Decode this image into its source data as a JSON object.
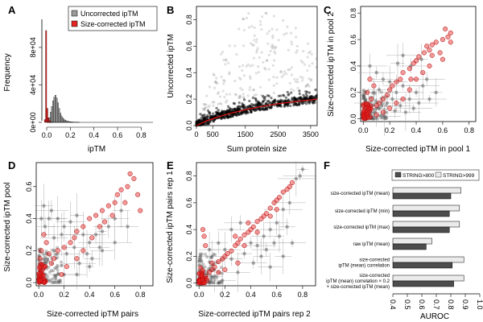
{
  "colors": {
    "uncorrected": "#9a9a9a",
    "corrected": "#e32222",
    "scatter_grey": "#555555",
    "bar_dark": "#4d4d4d",
    "bar_light": "#ebebeb",
    "fit_line": "#dd1111"
  },
  "chart_data": [
    {
      "panel": "A",
      "type": "histogram",
      "xlabel": "ipTM",
      "ylabel": "Frequency",
      "xticks": [
        "0.0",
        "0.2",
        "0.4",
        "0.6",
        "0.8"
      ],
      "yticks": [
        "0e+00",
        "4e+04",
        "8e+04"
      ],
      "legend": [
        "Uncorrected ipTM",
        "Size-corrected ipTM"
      ],
      "bin_width": 0.01,
      "xlim": [
        0,
        0.9
      ],
      "ylim": [
        0,
        110000
      ],
      "series": [
        {
          "name": "Size-corrected ipTM",
          "start": -0.02,
          "values": [
            3000,
            98000,
            15000,
            5000,
            2000,
            800,
            300
          ]
        },
        {
          "name": "Uncorrected ipTM",
          "start": 0.0,
          "values": [
            400,
            1500,
            5000,
            11000,
            17000,
            23000,
            27000,
            29000,
            26000,
            21000,
            15000,
            10000,
            7000,
            5000,
            3500,
            2500,
            1800,
            1300,
            1000,
            800,
            600,
            500,
            400,
            300,
            250,
            200,
            150,
            100
          ]
        }
      ]
    },
    {
      "panel": "B",
      "type": "scatter",
      "xlabel": "Sum protein size",
      "ylabel": "Uncorrected ipTM",
      "xticks": [
        "0",
        "500",
        "1500",
        "2500",
        "3500"
      ],
      "yticks": [
        "0.0",
        "0.2",
        "0.4",
        "0.6",
        "0.8"
      ],
      "xlim": [
        0,
        3700
      ],
      "ylim": [
        0,
        0.9
      ],
      "fit_points": [
        [
          0,
          0
        ],
        [
          300,
          0.035
        ],
        [
          600,
          0.06
        ],
        [
          1000,
          0.09
        ],
        [
          1500,
          0.12
        ],
        [
          2000,
          0.145
        ],
        [
          2500,
          0.165
        ],
        [
          3000,
          0.18
        ],
        [
          3700,
          0.2
        ]
      ],
      "cloud_curve": [
        [
          0,
          0
        ],
        [
          500,
          0.4
        ],
        [
          1000,
          0.7
        ],
        [
          1600,
          0.85
        ],
        [
          2200,
          0.88
        ],
        [
          3000,
          0.75
        ],
        [
          3700,
          0.55
        ]
      ]
    },
    {
      "panel": "C",
      "type": "scatter",
      "xlabel": "Size-corrected ipTM in pool 1",
      "ylabel": "Size-corrected ipTM in pool 2",
      "xticks": [
        "0.0",
        "0.2",
        "0.4",
        "0.6",
        "0.8"
      ],
      "yticks": [
        "0.0",
        "0.2",
        "0.4",
        "0.6",
        "0.8"
      ],
      "xlim": [
        -0.02,
        0.85
      ],
      "ylim": [
        -0.02,
        0.85
      ],
      "red_points": [
        [
          0.62,
          0.68
        ],
        [
          0.66,
          0.65
        ],
        [
          0.64,
          0.62
        ],
        [
          0.6,
          0.6
        ],
        [
          0.55,
          0.58
        ],
        [
          0.52,
          0.56
        ],
        [
          0.5,
          0.52
        ],
        [
          0.46,
          0.5
        ],
        [
          0.42,
          0.47
        ],
        [
          0.4,
          0.44
        ],
        [
          0.38,
          0.42
        ],
        [
          0.35,
          0.38
        ],
        [
          0.3,
          0.35
        ],
        [
          0.45,
          0.35
        ],
        [
          0.5,
          0.4
        ],
        [
          0.28,
          0.3
        ],
        [
          0.25,
          0.28
        ],
        [
          0.22,
          0.25
        ],
        [
          0.2,
          0.22
        ],
        [
          0.35,
          0.22
        ],
        [
          0.18,
          0.18
        ],
        [
          0.15,
          0.15
        ],
        [
          0.12,
          0.12
        ],
        [
          0.1,
          0.1
        ],
        [
          0.3,
          0.15
        ],
        [
          0.25,
          0.12
        ],
        [
          0.08,
          0.25
        ],
        [
          0.05,
          0.3
        ],
        [
          0.03,
          0.2
        ],
        [
          0.06,
          0.15
        ],
        [
          0.02,
          0.05
        ],
        [
          0.04,
          0.08
        ],
        [
          0.01,
          0.02
        ],
        [
          0.03,
          0.03
        ],
        [
          0.05,
          0.02
        ],
        [
          0.66,
          0.58
        ],
        [
          0.58,
          0.5
        ],
        [
          0.6,
          0.45
        ],
        [
          0.48,
          0.55
        ],
        [
          0.52,
          0.48
        ],
        [
          0.4,
          0.3
        ],
        [
          0.36,
          0.3
        ],
        [
          0.2,
          0.08
        ],
        [
          0.15,
          0.05
        ],
        [
          0.1,
          0.03
        ]
      ],
      "grey_points": [
        [
          0.05,
          0.4
        ],
        [
          0.1,
          0.35
        ],
        [
          0.15,
          0.3
        ],
        [
          0.2,
          0.28
        ],
        [
          0.25,
          0.2
        ],
        [
          0.3,
          0.25
        ],
        [
          0.35,
          0.15
        ],
        [
          0.4,
          0.2
        ],
        [
          0.45,
          0.25
        ],
        [
          0.08,
          0.2
        ],
        [
          0.12,
          0.22
        ],
        [
          0.18,
          0.12
        ],
        [
          0.22,
          0.15
        ],
        [
          0.28,
          0.1
        ],
        [
          0.32,
          0.05
        ],
        [
          0.38,
          0.08
        ],
        [
          0.42,
          0.12
        ],
        [
          0.5,
          0.15
        ],
        [
          0.55,
          0.2
        ],
        [
          0.06,
          0.05
        ],
        [
          0.1,
          0.08
        ],
        [
          0.14,
          0.1
        ],
        [
          0.04,
          0.12
        ],
        [
          0.16,
          0.02
        ],
        [
          0.24,
          0.06
        ],
        [
          0.48,
          0.3
        ],
        [
          0.36,
          0.4
        ],
        [
          0.26,
          0.42
        ],
        [
          0.44,
          0.45
        ],
        [
          0.3,
          0.48
        ]
      ]
    },
    {
      "panel": "D",
      "type": "scatter",
      "xlabel": "Size-corrected ipTM pairs",
      "ylabel": "Size-corrected ipTM pool",
      "xticks": [
        "0.0",
        "0.2",
        "0.4",
        "0.6",
        "0.8"
      ],
      "yticks": [
        "0.0",
        "0.2",
        "0.4",
        "0.6"
      ],
      "xlim": [
        -0.02,
        0.9
      ],
      "ylim": [
        -0.02,
        0.75
      ],
      "red_points": [
        [
          0.72,
          0.68
        ],
        [
          0.75,
          0.65
        ],
        [
          0.7,
          0.6
        ],
        [
          0.65,
          0.58
        ],
        [
          0.62,
          0.55
        ],
        [
          0.6,
          0.5
        ],
        [
          0.55,
          0.48
        ],
        [
          0.5,
          0.45
        ],
        [
          0.45,
          0.42
        ],
        [
          0.4,
          0.4
        ],
        [
          0.35,
          0.35
        ],
        [
          0.3,
          0.32
        ],
        [
          0.28,
          0.28
        ],
        [
          0.25,
          0.25
        ],
        [
          0.2,
          0.22
        ],
        [
          0.15,
          0.2
        ],
        [
          0.12,
          0.15
        ],
        [
          0.1,
          0.12
        ],
        [
          0.05,
          0.1
        ],
        [
          0.03,
          0.05
        ],
        [
          0.02,
          0.02
        ],
        [
          0.04,
          0.3
        ],
        [
          0.06,
          0.25
        ],
        [
          0.08,
          0.18
        ],
        [
          0.58,
          0.42
        ],
        [
          0.52,
          0.38
        ],
        [
          0.48,
          0.35
        ],
        [
          0.68,
          0.5
        ],
        [
          0.78,
          0.55
        ],
        [
          0.8,
          0.45
        ],
        [
          0.3,
          0.15
        ],
        [
          0.35,
          0.2
        ],
        [
          0.42,
          0.28
        ],
        [
          0.22,
          0.1
        ],
        [
          0.18,
          0.05
        ],
        [
          0.01,
          0.15
        ],
        [
          0.02,
          0.2
        ],
        [
          0.03,
          0.08
        ]
      ],
      "grey_points": [
        [
          0.1,
          0.45
        ],
        [
          0.15,
          0.4
        ],
        [
          0.2,
          0.35
        ],
        [
          0.25,
          0.38
        ],
        [
          0.3,
          0.42
        ],
        [
          0.35,
          0.3
        ],
        [
          0.4,
          0.25
        ],
        [
          0.45,
          0.3
        ],
        [
          0.5,
          0.32
        ],
        [
          0.55,
          0.35
        ],
        [
          0.6,
          0.4
        ],
        [
          0.65,
          0.45
        ],
        [
          0.3,
          0.05
        ],
        [
          0.4,
          0.1
        ],
        [
          0.2,
          0.05
        ],
        [
          0.5,
          0.2
        ],
        [
          0.6,
          0.25
        ],
        [
          0.7,
          0.35
        ],
        [
          0.05,
          0.35
        ],
        [
          0.08,
          0.4
        ],
        [
          0.12,
          0.28
        ],
        [
          0.18,
          0.3
        ],
        [
          0.22,
          0.18
        ],
        [
          0.28,
          0.22
        ],
        [
          0.32,
          0.12
        ],
        [
          0.38,
          0.18
        ],
        [
          0.42,
          0.15
        ],
        [
          0.48,
          0.22
        ],
        [
          0.02,
          0.4
        ],
        [
          0.04,
          0.48
        ]
      ]
    },
    {
      "panel": "E",
      "type": "scatter",
      "xlabel": "Size-corrected ipTM pairs rep 2",
      "ylabel": "Size-corrected ipTM pairs rep 1",
      "xticks": [
        "0.0",
        "0.2",
        "0.4",
        "0.6",
        "0.8"
      ],
      "yticks": [
        "0.0",
        "0.2",
        "0.4",
        "0.6",
        "0.8"
      ],
      "xlim": [
        -0.02,
        0.9
      ],
      "ylim": [
        -0.02,
        0.9
      ],
      "red_points": [
        [
          0.72,
          0.75
        ],
        [
          0.7,
          0.72
        ],
        [
          0.68,
          0.7
        ],
        [
          0.65,
          0.68
        ],
        [
          0.62,
          0.64
        ],
        [
          0.6,
          0.62
        ],
        [
          0.58,
          0.6
        ],
        [
          0.55,
          0.56
        ],
        [
          0.52,
          0.52
        ],
        [
          0.5,
          0.5
        ],
        [
          0.48,
          0.48
        ],
        [
          0.45,
          0.46
        ],
        [
          0.42,
          0.42
        ],
        [
          0.4,
          0.4
        ],
        [
          0.38,
          0.38
        ],
        [
          0.35,
          0.36
        ],
        [
          0.32,
          0.33
        ],
        [
          0.3,
          0.3
        ],
        [
          0.28,
          0.28
        ],
        [
          0.25,
          0.24
        ],
        [
          0.22,
          0.22
        ],
        [
          0.2,
          0.2
        ],
        [
          0.18,
          0.18
        ],
        [
          0.15,
          0.16
        ],
        [
          0.12,
          0.12
        ],
        [
          0.1,
          0.1
        ],
        [
          0.08,
          0.08
        ],
        [
          0.05,
          0.05
        ],
        [
          0.03,
          0.03
        ],
        [
          0.02,
          0.02
        ],
        [
          0.04,
          0.35
        ],
        [
          0.03,
          0.4
        ],
        [
          0.05,
          0.28
        ],
        [
          0.1,
          0.15
        ],
        [
          0.15,
          0.08
        ],
        [
          0.2,
          0.1
        ],
        [
          0.3,
          0.15
        ],
        [
          0.35,
          0.28
        ],
        [
          0.28,
          0.35
        ],
        [
          0.45,
          0.38
        ],
        [
          0.38,
          0.45
        ],
        [
          0.55,
          0.5
        ],
        [
          0.6,
          0.55
        ],
        [
          0.02,
          0.08
        ],
        [
          0.06,
          0.02
        ]
      ],
      "grey_points": [
        [
          0.15,
          0.3
        ],
        [
          0.2,
          0.25
        ],
        [
          0.25,
          0.18
        ],
        [
          0.35,
          0.22
        ],
        [
          0.4,
          0.3
        ],
        [
          0.45,
          0.28
        ],
        [
          0.5,
          0.35
        ],
        [
          0.55,
          0.4
        ],
        [
          0.6,
          0.45
        ],
        [
          0.65,
          0.55
        ],
        [
          0.7,
          0.6
        ],
        [
          0.78,
          0.8
        ],
        [
          0.8,
          0.85
        ],
        [
          0.75,
          0.78
        ],
        [
          0.1,
          0.2
        ],
        [
          0.08,
          0.25
        ],
        [
          0.12,
          0.05
        ],
        [
          0.18,
          0.02
        ],
        [
          0.3,
          0.08
        ],
        [
          0.42,
          0.15
        ],
        [
          0.48,
          0.2
        ],
        [
          0.52,
          0.25
        ],
        [
          0.58,
          0.3
        ],
        [
          0.62,
          0.35
        ],
        [
          0.68,
          0.42
        ],
        [
          0.72,
          0.3
        ],
        [
          0.55,
          0.12
        ],
        [
          0.65,
          0.2
        ],
        [
          0.25,
          0.4
        ],
        [
          0.32,
          0.45
        ]
      ]
    },
    {
      "panel": "F",
      "type": "bar",
      "orientation": "horizontal",
      "xlabel": "AUROC",
      "xlim": [
        0.4,
        1.0
      ],
      "xticks": [
        "0.4",
        "0.5",
        "0.6",
        "0.7",
        "0.8",
        "0.9",
        "1.0"
      ],
      "legend": [
        "STRING>800",
        "STRING>999"
      ],
      "categories": [
        [
          "size-corrected ipTM (mean)"
        ],
        [
          "size-corrected ipTM (min)"
        ],
        [
          "size-corrected ipTM (max)"
        ],
        [
          "raw ipTM (mean)"
        ],
        [
          "size-corrected",
          "ipTM (mean) correlation"
        ],
        [
          "size-corrected",
          "ipTM (mean) correlation × 0.2",
          "+ size-corrected ipTM (mean)"
        ]
      ],
      "series": [
        {
          "name": "STRING>800",
          "values": [
            0.8,
            0.79,
            0.79,
            0.63,
            0.81,
            0.82
          ]
        },
        {
          "name": "STRING>999",
          "values": [
            0.87,
            0.86,
            0.86,
            0.67,
            0.89,
            0.89
          ]
        }
      ]
    }
  ]
}
